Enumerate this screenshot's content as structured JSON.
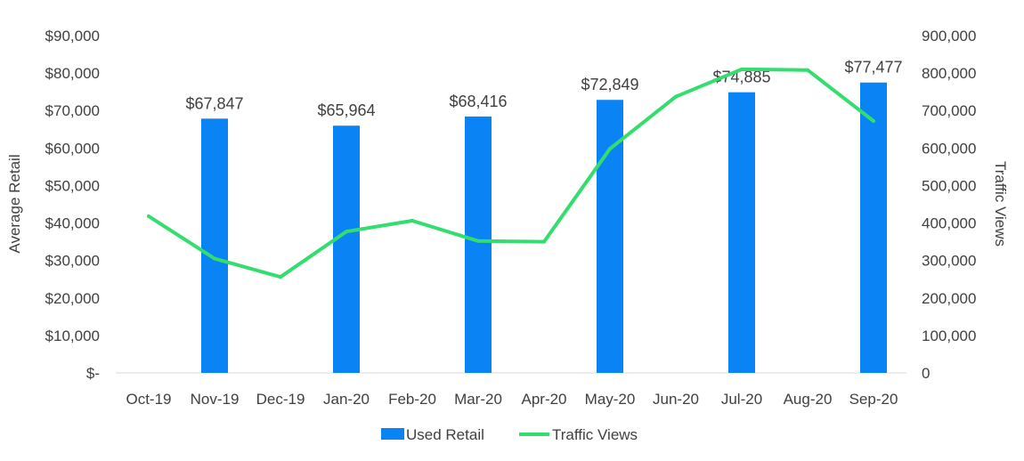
{
  "chart_data": {
    "type": "bar",
    "categories": [
      "Oct-19",
      "Nov-19",
      "Dec-19",
      "Jan-20",
      "Feb-20",
      "Mar-20",
      "Apr-20",
      "May-20",
      "Jun-20",
      "Jul-20",
      "Aug-20",
      "Sep-20"
    ],
    "series": [
      {
        "name": "Used Retail",
        "type": "bar",
        "axis": "left",
        "values": [
          null,
          67847,
          null,
          65964,
          null,
          68416,
          null,
          72849,
          null,
          74885,
          null,
          77477
        ],
        "data_labels": [
          "",
          "$67,847",
          "",
          "$65,964",
          "",
          "$68,416",
          "",
          "$72,849",
          "",
          "$74,885",
          "",
          "$77,477"
        ]
      },
      {
        "name": "Traffic Views",
        "type": "line",
        "axis": "right",
        "values": [
          418000,
          305000,
          256000,
          377000,
          406000,
          352000,
          350000,
          598000,
          737000,
          810000,
          808000,
          672000
        ]
      }
    ],
    "title": "",
    "xlabel": "",
    "ylabel": "Average Retail",
    "y2label": "Traffic Views",
    "ylim": [
      0,
      90000
    ],
    "y2lim": [
      0,
      900000
    ],
    "y_ticks": [
      0,
      10000,
      20000,
      30000,
      40000,
      50000,
      60000,
      70000,
      80000,
      90000
    ],
    "y_tick_labels": [
      "$-",
      "$10,000",
      "$20,000",
      "$30,000",
      "$40,000",
      "$50,000",
      "$60,000",
      "$70,000",
      "$80,000",
      "$90,000"
    ],
    "y2_ticks": [
      0,
      100000,
      200000,
      300000,
      400000,
      500000,
      600000,
      700000,
      800000,
      900000
    ],
    "y2_tick_labels": [
      "0",
      "100,000",
      "200,000",
      "300,000",
      "400,000",
      "500,000",
      "600,000",
      "700,000",
      "800,000",
      "900,000"
    ],
    "grid": false,
    "legend_position": "bottom",
    "colors": {
      "bar": "#0A84F5",
      "line": "#33DD6E",
      "text": "#404040",
      "axis": "#d9d9d9"
    }
  }
}
